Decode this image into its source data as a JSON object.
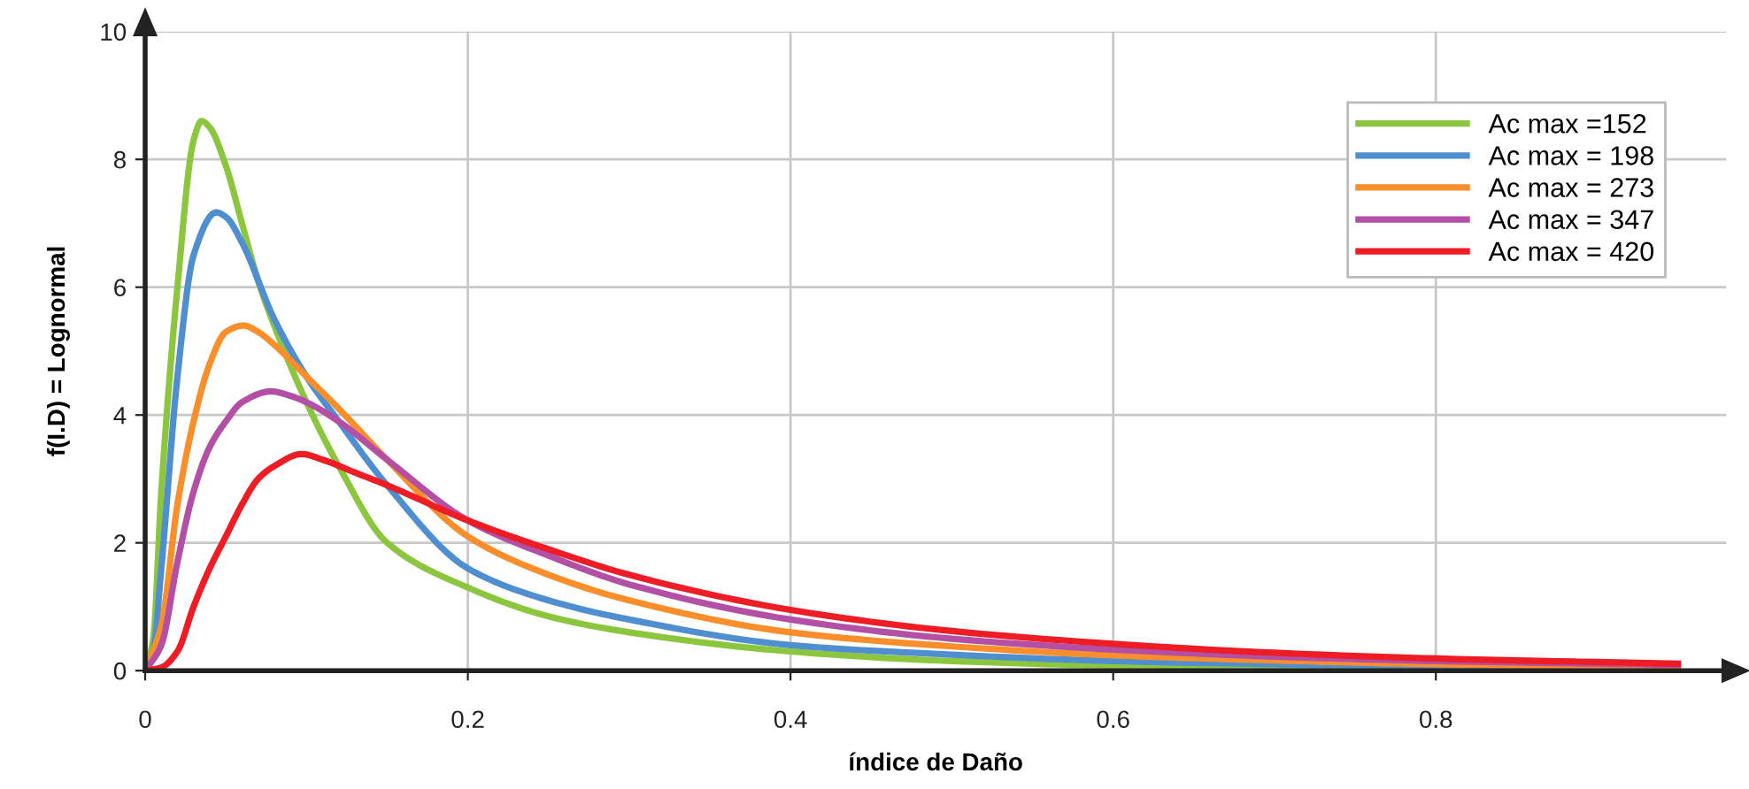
{
  "chart_data": {
    "type": "line",
    "xlabel": "índice de Daño",
    "ylabel": "f(I.D) = Lognormal",
    "xlim": [
      0,
      0.98
    ],
    "xticks": [
      0,
      0.2,
      0.4,
      0.6,
      0.8
    ],
    "ylim": [
      0,
      10
    ],
    "yticks": [
      0,
      2,
      4,
      6,
      8,
      10
    ],
    "grid": true,
    "legend": "top right",
    "marker": "none",
    "line_style": "solid",
    "series": [
      {
        "name": "Ac max =152",
        "color": "#8cc63f",
        "x": [
          0,
          0.005,
          0.01,
          0.02,
          0.03,
          0.035,
          0.04,
          0.05,
          0.06,
          0.07,
          0.08,
          0.1,
          0.12,
          0.15,
          0.2,
          0.25,
          0.3,
          0.4,
          0.5,
          0.6,
          0.7,
          0.8,
          0.95
        ],
        "values": [
          0,
          0.5,
          2.8,
          6.0,
          8.3,
          8.6,
          8.5,
          7.9,
          7.0,
          6.1,
          5.4,
          4.2,
          3.2,
          2.0,
          1.3,
          0.85,
          0.6,
          0.3,
          0.15,
          0.08,
          0.05,
          0.03,
          0.02
        ]
      },
      {
        "name": "Ac max = 198",
        "color": "#4f8fd0",
        "x": [
          0,
          0.005,
          0.01,
          0.02,
          0.03,
          0.044,
          0.05,
          0.06,
          0.08,
          0.1,
          0.12,
          0.15,
          0.2,
          0.25,
          0.3,
          0.4,
          0.5,
          0.6,
          0.7,
          0.8,
          0.95
        ],
        "values": [
          0,
          0.3,
          1.6,
          4.6,
          6.5,
          7.17,
          7.1,
          6.7,
          5.5,
          4.6,
          3.9,
          2.9,
          1.6,
          1.1,
          0.8,
          0.4,
          0.25,
          0.15,
          0.1,
          0.07,
          0.04
        ]
      },
      {
        "name": "Ac max = 273",
        "color": "#f98e2b",
        "x": [
          0,
          0.01,
          0.02,
          0.03,
          0.04,
          0.05,
          0.061,
          0.07,
          0.08,
          0.1,
          0.12,
          0.15,
          0.2,
          0.25,
          0.3,
          0.4,
          0.5,
          0.6,
          0.7,
          0.8,
          0.95
        ],
        "values": [
          0,
          0.7,
          2.6,
          3.9,
          4.8,
          5.3,
          5.4,
          5.3,
          5.1,
          4.6,
          4.1,
          3.3,
          2.1,
          1.5,
          1.1,
          0.6,
          0.38,
          0.24,
          0.16,
          0.1,
          0.06
        ]
      },
      {
        "name": "Ac max = 347",
        "color": "#b34fa4",
        "x": [
          0,
          0.01,
          0.02,
          0.03,
          0.04,
          0.05,
          0.06,
          0.078,
          0.09,
          0.1,
          0.12,
          0.15,
          0.2,
          0.25,
          0.3,
          0.4,
          0.5,
          0.6,
          0.7,
          0.8,
          0.95
        ],
        "values": [
          0,
          0.4,
          1.7,
          2.8,
          3.5,
          3.9,
          4.2,
          4.37,
          4.3,
          4.2,
          3.9,
          3.3,
          2.35,
          1.8,
          1.35,
          0.8,
          0.5,
          0.33,
          0.22,
          0.15,
          0.09
        ]
      },
      {
        "name": "Ac max = 420",
        "color": "#ee1c25",
        "x": [
          0,
          0.01,
          0.02,
          0.03,
          0.04,
          0.05,
          0.06,
          0.07,
          0.08,
          0.097,
          0.11,
          0.13,
          0.15,
          0.2,
          0.25,
          0.3,
          0.4,
          0.5,
          0.6,
          0.7,
          0.8,
          0.95
        ],
        "values": [
          0,
          0.05,
          0.3,
          1.0,
          1.6,
          2.1,
          2.6,
          3.0,
          3.2,
          3.39,
          3.3,
          3.1,
          2.9,
          2.35,
          1.9,
          1.5,
          0.95,
          0.62,
          0.42,
          0.28,
          0.19,
          0.11
        ]
      }
    ]
  }
}
